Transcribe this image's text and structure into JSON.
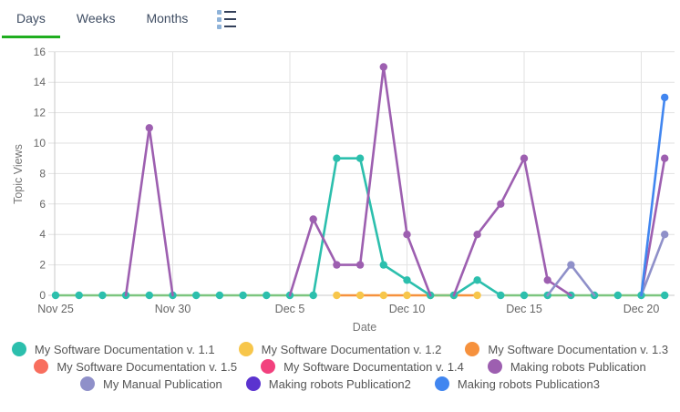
{
  "tabs": {
    "items": [
      {
        "label": "Days",
        "active": true
      },
      {
        "label": "Weeks",
        "active": false
      },
      {
        "label": "Months",
        "active": false
      }
    ],
    "list_icon": "list-icon"
  },
  "colors": {
    "active_tab_underline": "#1fae1f",
    "tab_text": "#3f4d63",
    "grid": "#e2e2e2",
    "axis": "#c8c8c8",
    "tick_text": "#666666",
    "axis_title_text": "#757575",
    "legend_text": "#555555",
    "zero_baseline_green": "#7cc57f"
  },
  "chart_data": {
    "type": "line",
    "title": "",
    "xlabel": "Date",
    "ylabel": "Topic Views",
    "ylim": [
      0,
      16
    ],
    "yticks": [
      0,
      2,
      4,
      6,
      8,
      10,
      12,
      14,
      16
    ],
    "grid": true,
    "legend_position": "bottom",
    "dates": [
      "Nov 25",
      "Nov 26",
      "Nov 27",
      "Nov 28",
      "Nov 29",
      "Nov 30",
      "Dec 1",
      "Dec 2",
      "Dec 3",
      "Dec 4",
      "Dec 5",
      "Dec 6",
      "Dec 7",
      "Dec 8",
      "Dec 9",
      "Dec 10",
      "Dec 11",
      "Dec 12",
      "Dec 13",
      "Dec 14",
      "Dec 15",
      "Dec 16",
      "Dec 17",
      "Dec 18",
      "Dec 19",
      "Dec 20",
      "Dec 21"
    ],
    "xticks": [
      {
        "index": 0,
        "label": "Nov 25"
      },
      {
        "index": 5,
        "label": "Nov 30"
      },
      {
        "index": 10,
        "label": "Dec 5"
      },
      {
        "index": 15,
        "label": "Dec 10"
      },
      {
        "index": 20,
        "label": "Dec 15"
      },
      {
        "index": 25,
        "label": "Dec 20"
      }
    ],
    "series": [
      {
        "id": "s11",
        "name": "My Software Documentation v. 1.1",
        "color": "#2cbfad",
        "values": [
          0,
          0,
          0,
          0,
          0,
          0,
          0,
          0,
          0,
          0,
          0,
          0,
          9,
          9,
          2,
          1,
          0,
          0,
          1,
          0,
          0,
          0,
          0,
          0,
          0,
          0,
          0
        ],
        "dots": "all",
        "zero_line_color": "#7cc57f"
      },
      {
        "id": "s12",
        "name": "My Software Documentation v. 1.2",
        "color": "#f7c64b",
        "values": [
          null,
          null,
          null,
          null,
          null,
          null,
          null,
          null,
          null,
          null,
          null,
          null,
          0,
          0,
          0,
          0,
          0,
          0,
          0,
          null,
          null,
          null,
          null,
          null,
          null,
          null,
          null
        ],
        "dots": "all",
        "line": false
      },
      {
        "id": "s13",
        "name": "My Software Documentation v. 1.3",
        "color": "#f6913d",
        "values": [
          null,
          null,
          null,
          null,
          null,
          null,
          null,
          null,
          null,
          null,
          null,
          null,
          0,
          0,
          0,
          0,
          0,
          0,
          0,
          null,
          null,
          null,
          null,
          null,
          null,
          null,
          null
        ],
        "dots": "none",
        "line": true
      },
      {
        "id": "s15",
        "name": "My Software Documentation v. 1.5",
        "color": "#f86e5e",
        "values": [
          null,
          null,
          null,
          null,
          null,
          null,
          null,
          null,
          null,
          null,
          null,
          null,
          null,
          null,
          null,
          null,
          null,
          null,
          null,
          null,
          null,
          null,
          null,
          null,
          null,
          null,
          null
        ],
        "dots": "none"
      },
      {
        "id": "s14",
        "name": "My Software Documentation v. 1.4",
        "color": "#f2417e",
        "values": [
          null,
          null,
          null,
          null,
          null,
          null,
          null,
          null,
          null,
          null,
          null,
          null,
          null,
          null,
          null,
          null,
          null,
          null,
          null,
          null,
          null,
          null,
          null,
          null,
          null,
          null,
          null
        ],
        "dots": "none"
      },
      {
        "id": "mrp",
        "name": "Making robots Publication",
        "color": "#9d5fb0",
        "values": [
          null,
          null,
          null,
          0,
          11,
          0,
          null,
          null,
          null,
          null,
          0,
          5,
          2,
          2,
          15,
          4,
          0,
          0,
          4,
          6,
          9,
          1,
          0,
          null,
          null,
          0,
          9
        ],
        "dots": "positive",
        "skip_zero_segments": true
      },
      {
        "id": "mmp",
        "name": "My Manual Publication",
        "color": "#8f90c9",
        "values": [
          null,
          null,
          null,
          null,
          null,
          null,
          null,
          null,
          null,
          null,
          null,
          null,
          null,
          null,
          null,
          null,
          null,
          null,
          null,
          null,
          null,
          0,
          2,
          0,
          null,
          0,
          4
        ],
        "dots": "positive",
        "skip_zero_segments": true
      },
      {
        "id": "mrp2",
        "name": "Making robots Publication2",
        "color": "#5b33cf",
        "values": [
          null,
          null,
          null,
          null,
          null,
          null,
          null,
          null,
          null,
          null,
          null,
          null,
          null,
          null,
          null,
          null,
          null,
          null,
          null,
          null,
          null,
          null,
          null,
          null,
          null,
          null,
          null
        ],
        "dots": "positive",
        "skip_zero_segments": true
      },
      {
        "id": "mrp3",
        "name": "Making robots Publication3",
        "color": "#4186f0",
        "values": [
          null,
          null,
          null,
          null,
          null,
          null,
          null,
          null,
          null,
          null,
          null,
          null,
          null,
          null,
          null,
          null,
          null,
          null,
          null,
          null,
          null,
          null,
          null,
          null,
          null,
          0,
          13
        ],
        "dots": "positive",
        "skip_zero_segments": true
      }
    ],
    "draw_order": [
      "s13",
      "s12",
      "s15",
      "s14",
      "s11",
      "mrp",
      "mmp",
      "mrp2",
      "mrp3"
    ],
    "legend_rows": [
      [
        "s11",
        "s12",
        "s13"
      ],
      [
        "s15",
        "s14",
        "mrp"
      ],
      [
        "mmp",
        "mrp2",
        "mrp3"
      ]
    ]
  }
}
